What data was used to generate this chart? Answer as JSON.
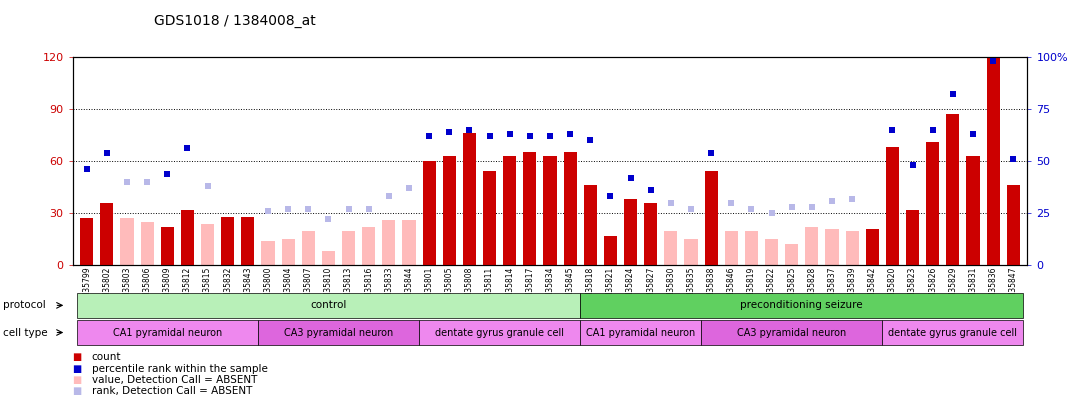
{
  "title": "GDS1018 / 1384008_at",
  "samples": [
    "GSM35799",
    "GSM35802",
    "GSM35803",
    "GSM35806",
    "GSM35809",
    "GSM35812",
    "GSM35815",
    "GSM35832",
    "GSM35843",
    "GSM35800",
    "GSM35804",
    "GSM35807",
    "GSM35810",
    "GSM35813",
    "GSM35816",
    "GSM35833",
    "GSM35844",
    "GSM35801",
    "GSM35805",
    "GSM35808",
    "GSM35811",
    "GSM35814",
    "GSM35817",
    "GSM35834",
    "GSM35845",
    "GSM35818",
    "GSM35821",
    "GSM35824",
    "GSM35827",
    "GSM35830",
    "GSM35835",
    "GSM35838",
    "GSM35846",
    "GSM35819",
    "GSM35822",
    "GSM35825",
    "GSM35828",
    "GSM35837",
    "GSM35839",
    "GSM35842",
    "GSM35820",
    "GSM35823",
    "GSM35826",
    "GSM35829",
    "GSM35831",
    "GSM35836",
    "GSM35847"
  ],
  "count": [
    27,
    36,
    null,
    null,
    22,
    32,
    null,
    28,
    28,
    null,
    null,
    null,
    null,
    null,
    null,
    null,
    null,
    60,
    63,
    76,
    54,
    63,
    65,
    63,
    65,
    46,
    17,
    38,
    36,
    null,
    null,
    54,
    null,
    null,
    null,
    null,
    null,
    null,
    null,
    21,
    68,
    32,
    71,
    87,
    63,
    121,
    46
  ],
  "rank": [
    46,
    54,
    null,
    null,
    44,
    56,
    null,
    null,
    null,
    null,
    null,
    null,
    null,
    null,
    null,
    null,
    null,
    62,
    64,
    65,
    62,
    63,
    62,
    62,
    63,
    60,
    33,
    42,
    36,
    null,
    null,
    54,
    null,
    null,
    null,
    null,
    null,
    null,
    null,
    null,
    65,
    48,
    65,
    82,
    63,
    98,
    51
  ],
  "absent_count": [
    null,
    null,
    27,
    25,
    null,
    null,
    24,
    null,
    null,
    14,
    15,
    20,
    8,
    20,
    22,
    26,
    26,
    null,
    null,
    null,
    null,
    null,
    null,
    null,
    null,
    null,
    null,
    null,
    null,
    20,
    15,
    null,
    20,
    20,
    15,
    12,
    22,
    21,
    20,
    null,
    null,
    null,
    null,
    null,
    null,
    null,
    null
  ],
  "absent_rank": [
    null,
    null,
    40,
    40,
    null,
    null,
    38,
    null,
    null,
    26,
    27,
    27,
    22,
    27,
    27,
    33,
    37,
    null,
    null,
    null,
    null,
    null,
    null,
    null,
    null,
    null,
    null,
    null,
    null,
    30,
    27,
    null,
    30,
    27,
    25,
    28,
    28,
    31,
    32,
    null,
    null,
    null,
    null,
    null,
    null,
    null,
    null
  ],
  "protocol_groups": [
    {
      "label": "control",
      "start": 0,
      "end": 25,
      "color": "#b8f0b8"
    },
    {
      "label": "preconditioning seizure",
      "start": 25,
      "end": 47,
      "color": "#60d060"
    }
  ],
  "cell_type_groups": [
    {
      "label": "CA1 pyramidal neuron",
      "start": 0,
      "end": 9,
      "color": "#ee88ee"
    },
    {
      "label": "CA3 pyramidal neuron",
      "start": 9,
      "end": 17,
      "color": "#dd66dd"
    },
    {
      "label": "dentate gyrus granule cell",
      "start": 17,
      "end": 25,
      "color": "#ee88ee"
    },
    {
      "label": "CA1 pyramidal neuron",
      "start": 25,
      "end": 31,
      "color": "#ee88ee"
    },
    {
      "label": "CA3 pyramidal neuron",
      "start": 31,
      "end": 40,
      "color": "#dd66dd"
    },
    {
      "label": "dentate gyrus granule cell",
      "start": 40,
      "end": 47,
      "color": "#ee88ee"
    }
  ],
  "left_ylim": [
    0,
    120
  ],
  "right_ylim": [
    0,
    100
  ],
  "left_yticks": [
    0,
    30,
    60,
    90,
    120
  ],
  "right_yticks": [
    0,
    25,
    50,
    75,
    100
  ],
  "bar_color": "#cc0000",
  "rank_color": "#0000cc",
  "absent_bar_color": "#ffbbbb",
  "absent_rank_color": "#b8b8e8"
}
